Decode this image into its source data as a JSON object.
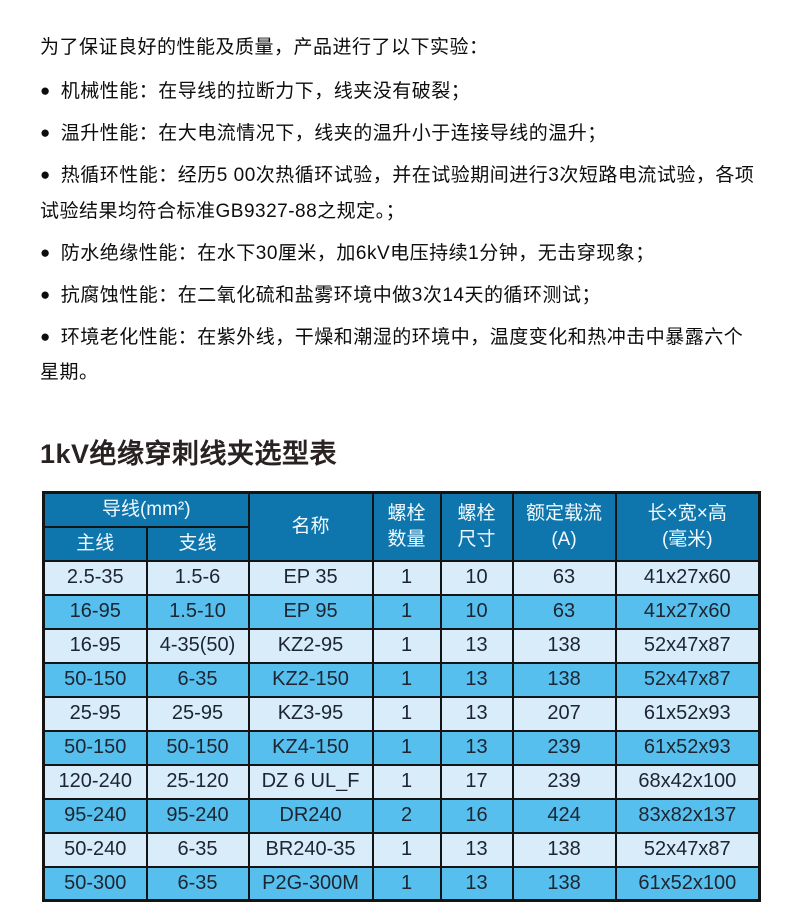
{
  "intro": {
    "lead": "为了保证良好的性能及质量，产品进行了以下实验：",
    "bullet_char": "●",
    "bullets": [
      "机械性能：在导线的拉断力下，线夹没有破裂；",
      "温升性能：在大电流情况下，线夹的温升小于连接导线的温升；",
      "热循环性能：经历5 00次热循环试验，并在试验期间进行3次短路电流试验，各项试验结果均符合标准GB9327-88之规定。；",
      "防水绝缘性能：在水下30厘米，加6kV电压持续1分钟，无击穿现象；",
      "抗腐蚀性能：在二氧化硫和盐雾环境中做3次14天的循环测试；",
      "环境老化性能：在紫外线，干燥和潮湿的环境中，温度变化和热冲击中暴露六个星期。"
    ]
  },
  "section_title": "1kV绝缘穿刺线夹选型表",
  "table": {
    "header": {
      "conductor_group": "导线(mm²)",
      "main_line": "主线",
      "branch_line": "支线",
      "name": "名称",
      "bolt_qty_line1": "螺栓",
      "bolt_qty_line2": "数量",
      "bolt_size_line1": "螺栓",
      "bolt_size_line2": "尺寸",
      "rated_current_line1": "额定载流",
      "rated_current_line2": "(A)",
      "dimensions_line1": "长×宽×高",
      "dimensions_line2": "(毫米)"
    },
    "rows": [
      [
        "2.5-35",
        "1.5-6",
        "EP 35",
        "1",
        "10",
        "63",
        "41x27x60"
      ],
      [
        "16-95",
        "1.5-10",
        "EP 95",
        "1",
        "10",
        "63",
        "41x27x60"
      ],
      [
        "16-95",
        "4-35(50)",
        "KZ2-95",
        "1",
        "13",
        "138",
        "52x47x87"
      ],
      [
        "50-150",
        "6-35",
        "KZ2-150",
        "1",
        "13",
        "138",
        "52x47x87"
      ],
      [
        "25-95",
        "25-95",
        "KZ3-95",
        "1",
        "13",
        "207",
        "61x52x93"
      ],
      [
        "50-150",
        "50-150",
        "KZ4-150",
        "1",
        "13",
        "239",
        "61x52x93"
      ],
      [
        "120-240",
        "25-120",
        "DZ 6 UL_F",
        "1",
        "17",
        "239",
        "68x42x100"
      ],
      [
        "95-240",
        "95-240",
        "DR240",
        "2",
        "16",
        "424",
        "83x82x137"
      ],
      [
        "50-240",
        "6-35",
        "BR240-35",
        "1",
        "13",
        "138",
        "52x47x87"
      ],
      [
        "50-300",
        "6-35",
        "P2G-300M",
        "1",
        "13",
        "138",
        "61x52x100"
      ]
    ]
  },
  "colors": {
    "header_bg": "#0e76ad",
    "row_light": "#d8ecf9",
    "row_medium": "#56bfee",
    "grid": "#141414",
    "header_text": "#f2f9fd",
    "cell_text": "#1c2530",
    "body_text": "#0d0d0d",
    "title_text": "#292222"
  }
}
